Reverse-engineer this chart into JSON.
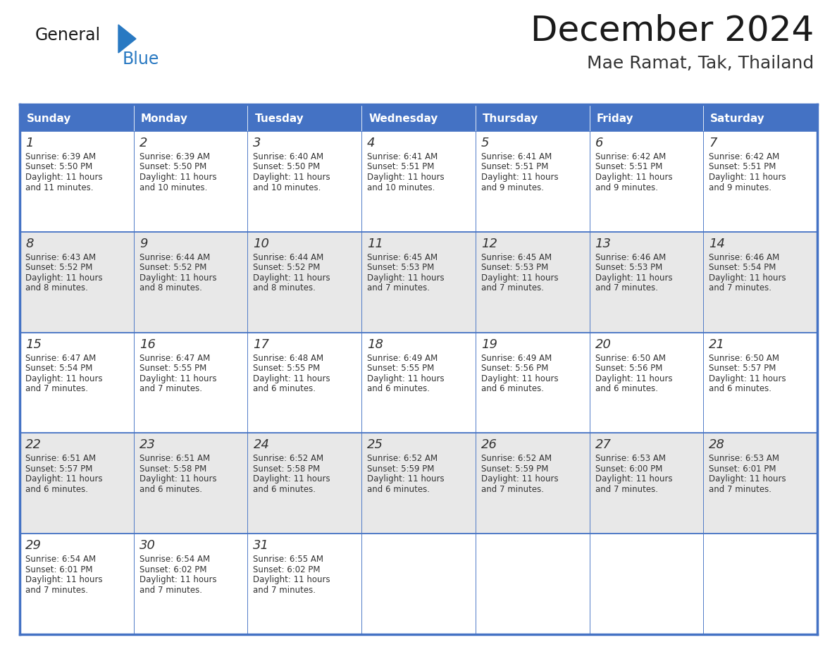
{
  "title": "December 2024",
  "subtitle": "Mae Ramat, Tak, Thailand",
  "header_color": "#4472C4",
  "header_text_color": "#FFFFFF",
  "cell_bg_white": "#FFFFFF",
  "cell_bg_gray": "#E8E8E8",
  "day_number_color": "#333333",
  "text_color": "#333333",
  "border_color": "#4472C4",
  "logo_black": "#1a1a1a",
  "logo_blue_text": "#2979C2",
  "logo_blue_triangle": "#2979C2",
  "days_of_week": [
    "Sunday",
    "Monday",
    "Tuesday",
    "Wednesday",
    "Thursday",
    "Friday",
    "Saturday"
  ],
  "weeks": [
    [
      {
        "day": 1,
        "sunrise": "6:39 AM",
        "sunset": "5:50 PM",
        "daylight_h": "11 hours",
        "daylight_m": "and 11 minutes."
      },
      {
        "day": 2,
        "sunrise": "6:39 AM",
        "sunset": "5:50 PM",
        "daylight_h": "11 hours",
        "daylight_m": "and 10 minutes."
      },
      {
        "day": 3,
        "sunrise": "6:40 AM",
        "sunset": "5:50 PM",
        "daylight_h": "11 hours",
        "daylight_m": "and 10 minutes."
      },
      {
        "day": 4,
        "sunrise": "6:41 AM",
        "sunset": "5:51 PM",
        "daylight_h": "11 hours",
        "daylight_m": "and 10 minutes."
      },
      {
        "day": 5,
        "sunrise": "6:41 AM",
        "sunset": "5:51 PM",
        "daylight_h": "11 hours",
        "daylight_m": "and 9 minutes."
      },
      {
        "day": 6,
        "sunrise": "6:42 AM",
        "sunset": "5:51 PM",
        "daylight_h": "11 hours",
        "daylight_m": "and 9 minutes."
      },
      {
        "day": 7,
        "sunrise": "6:42 AM",
        "sunset": "5:51 PM",
        "daylight_h": "11 hours",
        "daylight_m": "and 9 minutes."
      }
    ],
    [
      {
        "day": 8,
        "sunrise": "6:43 AM",
        "sunset": "5:52 PM",
        "daylight_h": "11 hours",
        "daylight_m": "and 8 minutes."
      },
      {
        "day": 9,
        "sunrise": "6:44 AM",
        "sunset": "5:52 PM",
        "daylight_h": "11 hours",
        "daylight_m": "and 8 minutes."
      },
      {
        "day": 10,
        "sunrise": "6:44 AM",
        "sunset": "5:52 PM",
        "daylight_h": "11 hours",
        "daylight_m": "and 8 minutes."
      },
      {
        "day": 11,
        "sunrise": "6:45 AM",
        "sunset": "5:53 PM",
        "daylight_h": "11 hours",
        "daylight_m": "and 7 minutes."
      },
      {
        "day": 12,
        "sunrise": "6:45 AM",
        "sunset": "5:53 PM",
        "daylight_h": "11 hours",
        "daylight_m": "and 7 minutes."
      },
      {
        "day": 13,
        "sunrise": "6:46 AM",
        "sunset": "5:53 PM",
        "daylight_h": "11 hours",
        "daylight_m": "and 7 minutes."
      },
      {
        "day": 14,
        "sunrise": "6:46 AM",
        "sunset": "5:54 PM",
        "daylight_h": "11 hours",
        "daylight_m": "and 7 minutes."
      }
    ],
    [
      {
        "day": 15,
        "sunrise": "6:47 AM",
        "sunset": "5:54 PM",
        "daylight_h": "11 hours",
        "daylight_m": "and 7 minutes."
      },
      {
        "day": 16,
        "sunrise": "6:47 AM",
        "sunset": "5:55 PM",
        "daylight_h": "11 hours",
        "daylight_m": "and 7 minutes."
      },
      {
        "day": 17,
        "sunrise": "6:48 AM",
        "sunset": "5:55 PM",
        "daylight_h": "11 hours",
        "daylight_m": "and 6 minutes."
      },
      {
        "day": 18,
        "sunrise": "6:49 AM",
        "sunset": "5:55 PM",
        "daylight_h": "11 hours",
        "daylight_m": "and 6 minutes."
      },
      {
        "day": 19,
        "sunrise": "6:49 AM",
        "sunset": "5:56 PM",
        "daylight_h": "11 hours",
        "daylight_m": "and 6 minutes."
      },
      {
        "day": 20,
        "sunrise": "6:50 AM",
        "sunset": "5:56 PM",
        "daylight_h": "11 hours",
        "daylight_m": "and 6 minutes."
      },
      {
        "day": 21,
        "sunrise": "6:50 AM",
        "sunset": "5:57 PM",
        "daylight_h": "11 hours",
        "daylight_m": "and 6 minutes."
      }
    ],
    [
      {
        "day": 22,
        "sunrise": "6:51 AM",
        "sunset": "5:57 PM",
        "daylight_h": "11 hours",
        "daylight_m": "and 6 minutes."
      },
      {
        "day": 23,
        "sunrise": "6:51 AM",
        "sunset": "5:58 PM",
        "daylight_h": "11 hours",
        "daylight_m": "and 6 minutes."
      },
      {
        "day": 24,
        "sunrise": "6:52 AM",
        "sunset": "5:58 PM",
        "daylight_h": "11 hours",
        "daylight_m": "and 6 minutes."
      },
      {
        "day": 25,
        "sunrise": "6:52 AM",
        "sunset": "5:59 PM",
        "daylight_h": "11 hours",
        "daylight_m": "and 6 minutes."
      },
      {
        "day": 26,
        "sunrise": "6:52 AM",
        "sunset": "5:59 PM",
        "daylight_h": "11 hours",
        "daylight_m": "and 7 minutes."
      },
      {
        "day": 27,
        "sunrise": "6:53 AM",
        "sunset": "6:00 PM",
        "daylight_h": "11 hours",
        "daylight_m": "and 7 minutes."
      },
      {
        "day": 28,
        "sunrise": "6:53 AM",
        "sunset": "6:01 PM",
        "daylight_h": "11 hours",
        "daylight_m": "and 7 minutes."
      }
    ],
    [
      {
        "day": 29,
        "sunrise": "6:54 AM",
        "sunset": "6:01 PM",
        "daylight_h": "11 hours",
        "daylight_m": "and 7 minutes."
      },
      {
        "day": 30,
        "sunrise": "6:54 AM",
        "sunset": "6:02 PM",
        "daylight_h": "11 hours",
        "daylight_m": "and 7 minutes."
      },
      {
        "day": 31,
        "sunrise": "6:55 AM",
        "sunset": "6:02 PM",
        "daylight_h": "11 hours",
        "daylight_m": "and 7 minutes."
      },
      null,
      null,
      null,
      null
    ]
  ]
}
